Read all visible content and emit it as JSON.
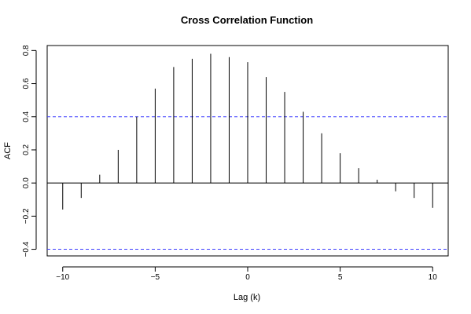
{
  "chart_data": {
    "type": "bar",
    "title": "Cross Correlation Function",
    "xlabel": "Lag (k)",
    "ylabel": "ACF",
    "xlim": [
      -10.84,
      10.84
    ],
    "ylim": [
      -0.44,
      0.83
    ],
    "x_ticks": [
      -10,
      -5,
      0,
      5,
      10
    ],
    "x_tick_labels": [
      "−10",
      "−5",
      "0",
      "5",
      "10"
    ],
    "y_ticks": [
      -0.4,
      -0.2,
      0.0,
      0.2,
      0.4,
      0.6,
      0.8
    ],
    "y_tick_labels": [
      "−0.4",
      "−0.2",
      "0.0",
      "0.2",
      "0.4",
      "0.6",
      "0.8"
    ],
    "lags": [
      -10,
      -9,
      -8,
      -7,
      -6,
      -5,
      -4,
      -3,
      -2,
      -1,
      0,
      1,
      2,
      3,
      4,
      5,
      6,
      7,
      8,
      9,
      10
    ],
    "values": [
      -0.16,
      -0.09,
      0.05,
      0.2,
      0.4,
      0.57,
      0.7,
      0.75,
      0.78,
      0.76,
      0.73,
      0.64,
      0.55,
      0.43,
      0.3,
      0.18,
      0.09,
      0.02,
      -0.05,
      -0.09,
      -0.15
    ],
    "confidence_bounds": [
      0.4,
      -0.4
    ],
    "confidence_line_color": "#3b3bff",
    "grid": false
  }
}
